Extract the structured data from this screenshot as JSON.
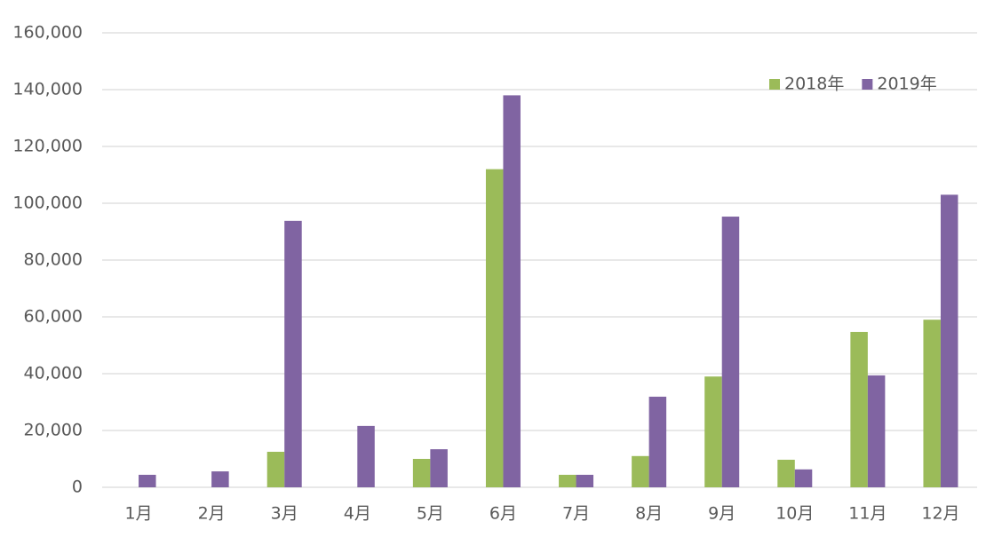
{
  "chart_data": {
    "type": "bar",
    "categories": [
      "1月",
      "2月",
      "3月",
      "4月",
      "5月",
      "6月",
      "7月",
      "8月",
      "9月",
      "10月",
      "11月",
      "12月"
    ],
    "series": [
      {
        "name": "2018年",
        "color": "#9bbb59",
        "values": [
          0,
          0,
          12500,
          0,
          10000,
          112000,
          4400,
          11000,
          39000,
          9700,
          54700,
          59000
        ]
      },
      {
        "name": "2019年",
        "color": "#8064a2",
        "values": [
          4400,
          5600,
          93800,
          21600,
          13400,
          138000,
          4400,
          31900,
          95300,
          6300,
          39400,
          103000
        ]
      }
    ],
    "ylim": [
      0,
      160000
    ],
    "yticks": [
      0,
      {
        "value": 20000,
        "label": "20,000"
      },
      {
        "value": 40000,
        "label": "40,000"
      },
      {
        "value": 60000,
        "label": "60,000"
      },
      {
        "value": 80000,
        "label": "80,000"
      },
      {
        "value": 100000,
        "label": "100,000"
      },
      {
        "value": 120000,
        "label": "120,000"
      },
      {
        "value": 140000,
        "label": "140,000"
      },
      {
        "value": 160000,
        "label": "160,000"
      }
    ],
    "grid": true,
    "legend": "upper right"
  }
}
